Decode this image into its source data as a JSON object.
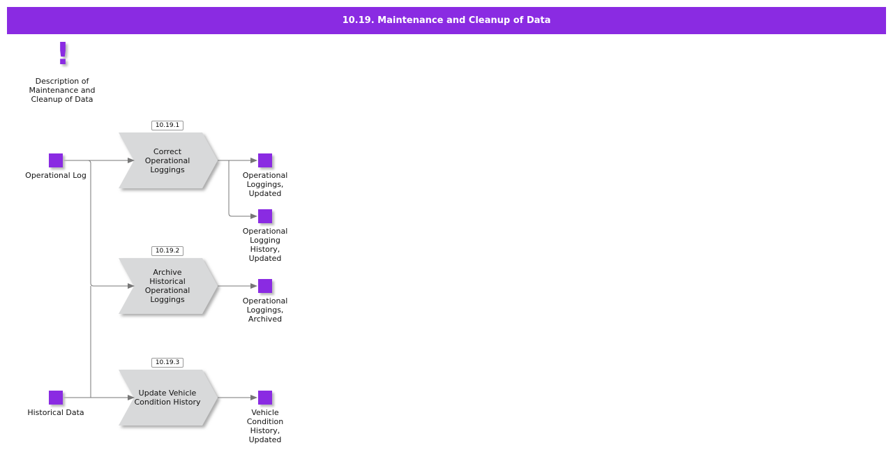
{
  "title": "10.19. Maintenance and Cleanup of Data",
  "accent": "#8a2be2",
  "description": {
    "icon": "exclamation-icon",
    "label": "Description of Maintenance and Cleanup of Data"
  },
  "inputs": [
    {
      "label": "Operational Log"
    },
    {
      "label": "Historical Data"
    }
  ],
  "processes": [
    {
      "id": "10.19.1",
      "label": "Correct Operational Loggings"
    },
    {
      "id": "10.19.2",
      "label": "Archive Historical Operational Loggings"
    },
    {
      "id": "10.19.3",
      "label": "Update Vehicle Condition History"
    }
  ],
  "outputs": [
    {
      "label": "Operational Loggings, Updated"
    },
    {
      "label": "Operational Logging History, Updated"
    },
    {
      "label": "Operational Loggings, Archived"
    },
    {
      "label": "Vehicle Condition History, Updated"
    }
  ]
}
